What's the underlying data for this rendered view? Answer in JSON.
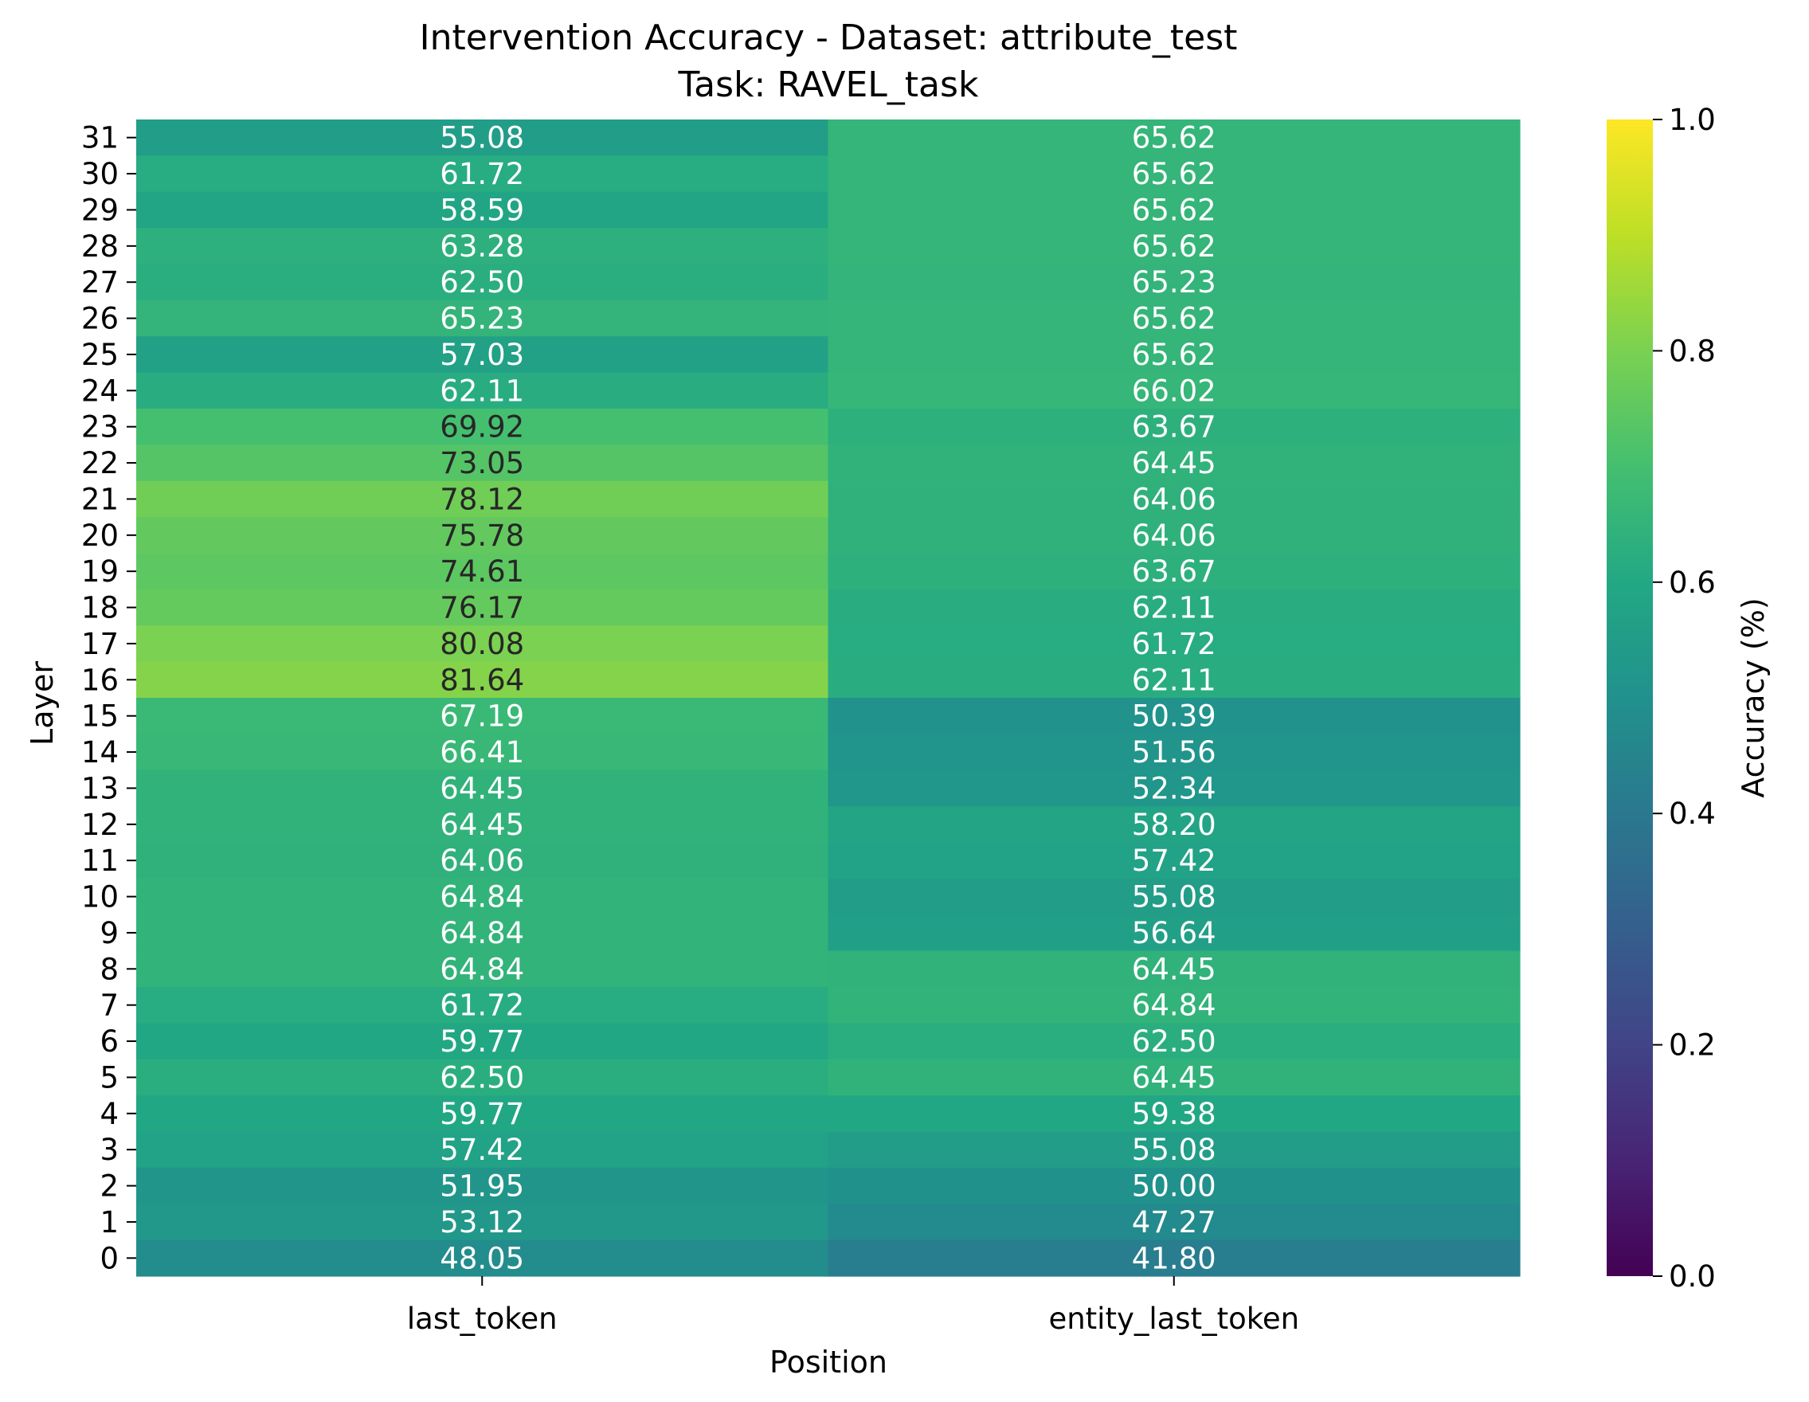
{
  "chart_data": {
    "type": "heatmap",
    "title": "Intervention Accuracy - Dataset: attribute_test",
    "subtitle": "Task: RAVEL_task",
    "xlabel": "Position",
    "ylabel": "Layer",
    "colorbar_label": "Accuracy (%)",
    "colormap": "viridis",
    "color_range": [
      0,
      1
    ],
    "colorbar_ticks": [
      "0.0",
      "0.2",
      "0.4",
      "0.6",
      "0.8",
      "1.0"
    ],
    "x_categories": [
      "last_token",
      "entity_last_token"
    ],
    "y_categories": [
      "31",
      "30",
      "29",
      "28",
      "27",
      "26",
      "25",
      "24",
      "23",
      "22",
      "21",
      "20",
      "19",
      "18",
      "17",
      "16",
      "15",
      "14",
      "13",
      "12",
      "11",
      "10",
      "9",
      "8",
      "7",
      "6",
      "5",
      "4",
      "3",
      "2",
      "1",
      "0"
    ],
    "values": [
      [
        "55.08",
        "65.62"
      ],
      [
        "61.72",
        "65.62"
      ],
      [
        "58.59",
        "65.62"
      ],
      [
        "63.28",
        "65.62"
      ],
      [
        "62.50",
        "65.23"
      ],
      [
        "65.23",
        "65.62"
      ],
      [
        "57.03",
        "65.62"
      ],
      [
        "62.11",
        "66.02"
      ],
      [
        "69.92",
        "63.67"
      ],
      [
        "73.05",
        "64.45"
      ],
      [
        "78.12",
        "64.06"
      ],
      [
        "75.78",
        "64.06"
      ],
      [
        "74.61",
        "63.67"
      ],
      [
        "76.17",
        "62.11"
      ],
      [
        "80.08",
        "61.72"
      ],
      [
        "81.64",
        "62.11"
      ],
      [
        "67.19",
        "50.39"
      ],
      [
        "66.41",
        "51.56"
      ],
      [
        "64.45",
        "52.34"
      ],
      [
        "64.45",
        "58.20"
      ],
      [
        "64.06",
        "57.42"
      ],
      [
        "64.84",
        "55.08"
      ],
      [
        "64.84",
        "56.64"
      ],
      [
        "64.84",
        "64.45"
      ],
      [
        "61.72",
        "64.84"
      ],
      [
        "59.77",
        "62.50"
      ],
      [
        "62.50",
        "64.45"
      ],
      [
        "59.77",
        "59.38"
      ],
      [
        "57.42",
        "55.08"
      ],
      [
        "51.95",
        "50.00"
      ],
      [
        "53.12",
        "47.27"
      ],
      [
        "48.05",
        "41.80"
      ]
    ],
    "grid": false,
    "legend": "colorbar-right"
  }
}
